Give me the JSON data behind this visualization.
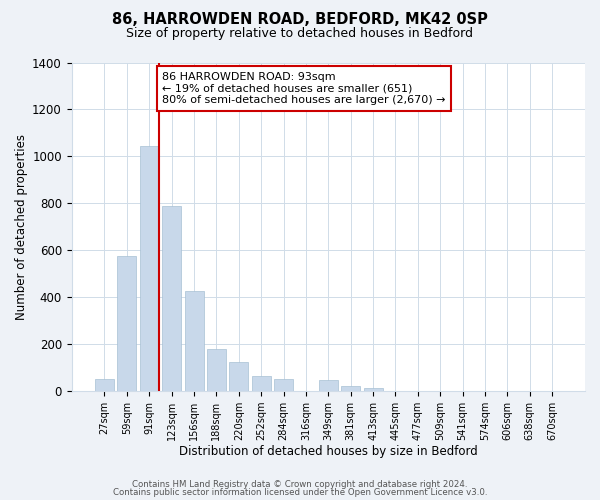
{
  "title": "86, HARROWDEN ROAD, BEDFORD, MK42 0SP",
  "subtitle": "Size of property relative to detached houses in Bedford",
  "xlabel": "Distribution of detached houses by size in Bedford",
  "ylabel": "Number of detached properties",
  "bar_labels": [
    "27sqm",
    "59sqm",
    "91sqm",
    "123sqm",
    "156sqm",
    "188sqm",
    "220sqm",
    "252sqm",
    "284sqm",
    "316sqm",
    "349sqm",
    "381sqm",
    "413sqm",
    "445sqm",
    "477sqm",
    "509sqm",
    "541sqm",
    "574sqm",
    "606sqm",
    "638sqm",
    "670sqm"
  ],
  "bar_heights": [
    50,
    575,
    1043,
    790,
    425,
    180,
    125,
    65,
    50,
    0,
    48,
    22,
    12,
    0,
    0,
    0,
    0,
    0,
    0,
    0,
    0
  ],
  "bar_color": "#c8d8ea",
  "bar_edge_color": "#a8c0d4",
  "vline_color": "#cc0000",
  "vline_x_index": 2,
  "annotation_text": "86 HARROWDEN ROAD: 93sqm\n← 19% of detached houses are smaller (651)\n80% of semi-detached houses are larger (2,670) →",
  "annotation_box_color": "#ffffff",
  "annotation_box_edge": "#cc0000",
  "ylim": [
    0,
    1400
  ],
  "yticks": [
    0,
    200,
    400,
    600,
    800,
    1000,
    1200,
    1400
  ],
  "footer1": "Contains HM Land Registry data © Crown copyright and database right 2024.",
  "footer2": "Contains public sector information licensed under the Open Government Licence v3.0.",
  "bg_color": "#eef2f7",
  "plot_bg_color": "#ffffff",
  "grid_color": "#d0dce8"
}
